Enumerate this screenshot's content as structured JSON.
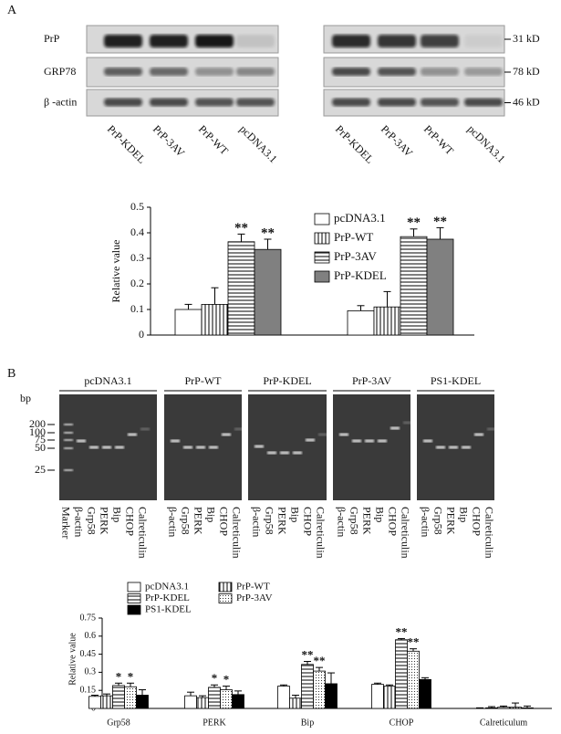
{
  "panel_a": {
    "label": "A",
    "rows": [
      "PrP",
      "GRP78",
      "β -actin"
    ],
    "sizes": [
      "31 kD",
      "78 kD",
      "46 kD"
    ],
    "lanes_left": [
      "PrP-KDEL",
      "PrP-3AV",
      "PrP-WT",
      "pcDNA3.1"
    ],
    "lanes_right": [
      "PrP-KDEL",
      "PrP-3AV",
      "PrP-WT",
      "pcDNA3.1"
    ]
  },
  "panel_b": {
    "label": "B",
    "bp_label": "bp",
    "markers": [
      200,
      100,
      75,
      50,
      25
    ],
    "gels": [
      {
        "title": "pcDNA3.1",
        "lanes": [
          "Marker",
          "β-actin",
          "Grp58",
          "PERK",
          "Bip",
          "CHOP",
          "Calreticulin"
        ]
      },
      {
        "title": "PrP-WT",
        "lanes": [
          "β-actin",
          "Grp58",
          "PERK",
          "Bip",
          "CHOP",
          "Calreticulin"
        ]
      },
      {
        "title": "PrP-KDEL",
        "lanes": [
          "β-actin",
          "Grp58",
          "PERK",
          "Bip",
          "CHOP",
          "Calreticulin"
        ]
      },
      {
        "title": "PrP-3AV",
        "lanes": [
          "β-actin",
          "Grp58",
          "PERK",
          "Bip",
          "CHOP",
          "Calreticulin"
        ]
      },
      {
        "title": "PS1-KDEL",
        "lanes": [
          "β-actin",
          "Grp58",
          "PERK",
          "Bip",
          "CHOP",
          "Calreticulin"
        ]
      }
    ]
  },
  "chart_data": [
    {
      "type": "bar",
      "ylabel": "Relative value",
      "categories": [
        null,
        null
      ],
      "ylim": [
        0,
        0.5
      ],
      "yticks": [
        0,
        0.1,
        0.2,
        0.3,
        0.4,
        0.5
      ],
      "legend": "upper right",
      "series": [
        {
          "name": "pcDNA3.1",
          "color": "#ffffff",
          "pattern": "none",
          "values": [
            0.1,
            0.095
          ],
          "errors": [
            0.02,
            0.02
          ],
          "significance": [
            null,
            null
          ]
        },
        {
          "name": "PrP-WT",
          "color": "#ffffff",
          "pattern": "vertical",
          "values": [
            0.12,
            0.11
          ],
          "errors": [
            0.065,
            0.06
          ],
          "significance": [
            null,
            null
          ]
        },
        {
          "name": "PrP-3AV",
          "color": "#ffffff",
          "pattern": "horizontal",
          "values": [
            0.365,
            0.385
          ],
          "errors": [
            0.03,
            0.03
          ],
          "significance": [
            "**",
            "**"
          ]
        },
        {
          "name": "PrP-KDEL",
          "color": "#808080",
          "pattern": "none",
          "values": [
            0.335,
            0.375
          ],
          "errors": [
            0.04,
            0.045
          ],
          "significance": [
            "**",
            "**"
          ]
        }
      ]
    },
    {
      "type": "bar",
      "ylabel": "Relative value",
      "categories": [
        "Grp58",
        "PERK",
        "Bip",
        "CHOP",
        "Calreticulum"
      ],
      "ylim": [
        0,
        0.75
      ],
      "yticks": [
        0,
        0.15,
        0.3,
        0.45,
        0.6,
        0.75
      ],
      "legend": "upper left",
      "series": [
        {
          "name": "pcDNA3.1",
          "color": "#ffffff",
          "pattern": "none",
          "values": [
            0.1,
            0.105,
            0.185,
            0.2,
            0
          ],
          "errors": [
            0.01,
            0.03,
            0.01,
            0.01,
            0.005
          ],
          "significance": [
            null,
            null,
            null,
            null,
            null
          ]
        },
        {
          "name": "PrP-WT",
          "color": "#ffffff",
          "pattern": "vertical",
          "values": [
            0.105,
            0.09,
            0.085,
            0.185,
            0.005
          ],
          "errors": [
            0.015,
            0.015,
            0.025,
            0.01,
            0.01
          ],
          "significance": [
            null,
            null,
            null,
            null,
            null
          ]
        },
        {
          "name": "PrP-KDEL",
          "color": "#ffffff",
          "pattern": "horizontal",
          "values": [
            0.19,
            0.175,
            0.365,
            0.57,
            0.01
          ],
          "errors": [
            0.02,
            0.02,
            0.025,
            0.01,
            0.01
          ],
          "significance": [
            "*",
            "*",
            "**",
            "**",
            null
          ]
        },
        {
          "name": "PrP-3AV",
          "color": "#ffffff",
          "pattern": "dots",
          "values": [
            0.18,
            0.155,
            0.31,
            0.475,
            0.01
          ],
          "errors": [
            0.03,
            0.03,
            0.03,
            0.02,
            0.035
          ],
          "significance": [
            "*",
            "*",
            "**",
            "**",
            null
          ]
        },
        {
          "name": "PS1-KDEL",
          "color": "#000000",
          "pattern": "none",
          "values": [
            0.11,
            0.115,
            0.205,
            0.24,
            0.005
          ],
          "errors": [
            0.045,
            0.03,
            0.09,
            0.015,
            0.015
          ],
          "significance": [
            null,
            null,
            null,
            null,
            null
          ]
        }
      ]
    }
  ]
}
